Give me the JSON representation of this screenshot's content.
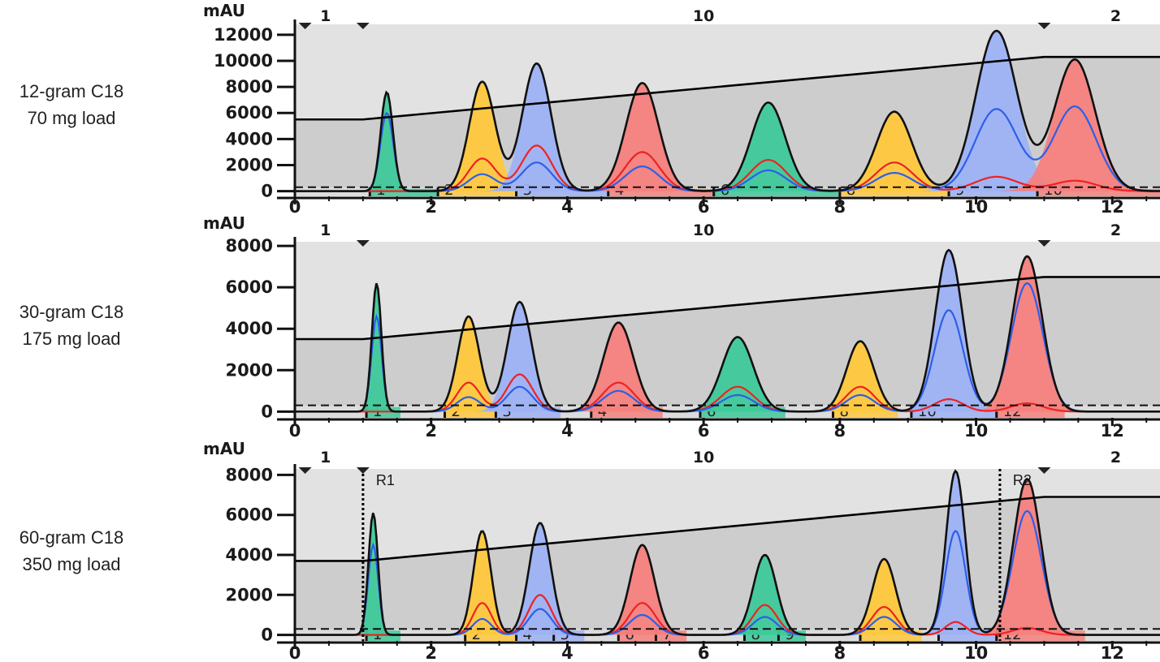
{
  "chart_data": [
    {
      "type": "line",
      "title": "12-gram C18",
      "subtitle": "70 mg load",
      "ylabel": "mAU",
      "xlim": [
        0,
        12.7
      ],
      "ylim": [
        -400,
        12800
      ],
      "xticks": [
        0,
        2,
        4,
        6,
        8,
        10,
        12
      ],
      "yticks": [
        0,
        2000,
        4000,
        6000,
        8000,
        10000,
        12000
      ],
      "rack_labels": [
        {
          "x": 0.45,
          "text": "1"
        },
        {
          "x": 6.0,
          "text": "10"
        },
        {
          "x": 12.05,
          "text": "2"
        }
      ],
      "rack_markers": [
        0.15,
        1.0,
        11.0
      ],
      "threshold": 300,
      "gradient": [
        [
          0,
          5500
        ],
        [
          1.0,
          5500
        ],
        [
          11.0,
          10300
        ],
        [
          12.7,
          10300
        ]
      ],
      "peaks": [
        {
          "x": 1.35,
          "height": 7600,
          "sigma": 0.09,
          "color": "#3ec99a",
          "blue": 6000,
          "red": 0
        },
        {
          "x": 2.75,
          "height": 8400,
          "sigma": 0.19,
          "color": "#ffc83d",
          "blue": 1300,
          "red": 2500
        },
        {
          "x": 3.55,
          "height": 9800,
          "sigma": 0.21,
          "color": "#9db2f5",
          "blue": 2200,
          "red": 3500
        },
        {
          "x": 5.1,
          "height": 8300,
          "sigma": 0.24,
          "color": "#f5817d",
          "blue": 1900,
          "red": 3000
        },
        {
          "x": 6.95,
          "height": 6800,
          "sigma": 0.25,
          "color": "#3ec99a",
          "blue": 1600,
          "red": 2400
        },
        {
          "x": 8.8,
          "height": 6100,
          "sigma": 0.26,
          "color": "#ffc83d",
          "blue": 1400,
          "red": 2200
        },
        {
          "x": 10.3,
          "height": 12300,
          "sigma": 0.3,
          "color": "#9db2f5",
          "blue": 6300,
          "red": 1100
        },
        {
          "x": 11.45,
          "height": 10100,
          "sigma": 0.3,
          "color": "#f5817d",
          "blue": 6500,
          "red": 800
        }
      ],
      "fractions": [
        {
          "start": 1.1,
          "end": 2.1,
          "label": "1",
          "color": "#3ec99a"
        },
        {
          "start": 2.1,
          "end": 3.25,
          "label": "2",
          "color": "#ffc83d"
        },
        {
          "start": 3.25,
          "end": 4.6,
          "label": "3",
          "color": "#9db2f5"
        },
        {
          "start": 4.6,
          "end": 6.15,
          "label": "4",
          "color": "#f5817d"
        },
        {
          "start": 6.15,
          "end": 8.0,
          "label": "6",
          "color": "#3ec99a"
        },
        {
          "start": 8.0,
          "end": 9.6,
          "label": "8",
          "color": "#ffc83d"
        },
        {
          "start": 9.6,
          "end": 10.9,
          "label": "9",
          "color": "#9db2f5"
        },
        {
          "start": 10.9,
          "end": 12.7,
          "label": "10",
          "color": "#f5817d"
        }
      ],
      "markers": []
    },
    {
      "type": "line",
      "title": "30-gram C18",
      "subtitle": "175 mg load",
      "ylabel": "mAU",
      "xlim": [
        0,
        12.7
      ],
      "ylim": [
        -300,
        8200
      ],
      "xticks": [
        0,
        2,
        4,
        6,
        8,
        10,
        12
      ],
      "yticks": [
        0,
        2000,
        4000,
        6000,
        8000
      ],
      "rack_labels": [
        {
          "x": 0.45,
          "text": "1"
        },
        {
          "x": 6.0,
          "text": "10"
        },
        {
          "x": 12.05,
          "text": "2"
        }
      ],
      "rack_markers": [
        1.0,
        11.0
      ],
      "threshold": 300,
      "gradient": [
        [
          0,
          3500
        ],
        [
          1.0,
          3500
        ],
        [
          11.0,
          6500
        ],
        [
          12.7,
          6500
        ]
      ],
      "peaks": [
        {
          "x": 1.2,
          "height": 6200,
          "sigma": 0.07,
          "color": "#3ec99a",
          "blue": 4600,
          "red": 0
        },
        {
          "x": 2.55,
          "height": 4600,
          "sigma": 0.16,
          "color": "#ffc83d",
          "blue": 700,
          "red": 1400
        },
        {
          "x": 3.3,
          "height": 5300,
          "sigma": 0.18,
          "color": "#9db2f5",
          "blue": 1200,
          "red": 1800
        },
        {
          "x": 4.75,
          "height": 4300,
          "sigma": 0.22,
          "color": "#f5817d",
          "blue": 1000,
          "red": 1400
        },
        {
          "x": 6.5,
          "height": 3600,
          "sigma": 0.23,
          "color": "#3ec99a",
          "blue": 800,
          "red": 1200
        },
        {
          "x": 8.3,
          "height": 3400,
          "sigma": 0.2,
          "color": "#ffc83d",
          "blue": 800,
          "red": 1200
        },
        {
          "x": 9.6,
          "height": 7800,
          "sigma": 0.2,
          "color": "#9db2f5",
          "blue": 4900,
          "red": 600
        },
        {
          "x": 10.75,
          "height": 7500,
          "sigma": 0.22,
          "color": "#f5817d",
          "blue": 6200,
          "red": 400
        }
      ],
      "fractions": [
        {
          "start": 1.05,
          "end": 1.55,
          "label": "1",
          "color": "#3ec99a"
        },
        {
          "start": 2.2,
          "end": 2.95,
          "label": "2",
          "color": "#ffc83d"
        },
        {
          "start": 2.95,
          "end": 3.9,
          "label": "3",
          "color": "#9db2f5"
        },
        {
          "start": 4.35,
          "end": 5.4,
          "label": "4",
          "color": "#f5817d"
        },
        {
          "start": 5.95,
          "end": 7.2,
          "label": "6",
          "color": "#3ec99a"
        },
        {
          "start": 7.9,
          "end": 8.85,
          "label": "8",
          "color": "#ffc83d"
        },
        {
          "start": 9.05,
          "end": 10.3,
          "label": "10",
          "color": "#9db2f5"
        },
        {
          "start": 10.3,
          "end": 11.3,
          "label": "12",
          "color": "#f5817d"
        }
      ],
      "markers": []
    },
    {
      "type": "line",
      "title": "60-gram C18",
      "subtitle": "350 mg load",
      "ylabel": "mAU",
      "xlim": [
        0,
        12.7
      ],
      "ylim": [
        -300,
        8300
      ],
      "xticks": [
        0,
        2,
        4,
        6,
        8,
        10,
        12
      ],
      "yticks": [
        0,
        2000,
        4000,
        6000,
        8000
      ],
      "rack_labels": [
        {
          "x": 0.45,
          "text": "1"
        },
        {
          "x": 6.0,
          "text": "10"
        },
        {
          "x": 12.05,
          "text": "2"
        }
      ],
      "rack_markers": [
        0.15,
        1.0,
        11.0
      ],
      "threshold": 300,
      "gradient": [
        [
          0,
          3700
        ],
        [
          1.0,
          3700
        ],
        [
          11.0,
          6900
        ],
        [
          12.7,
          6900
        ]
      ],
      "peaks": [
        {
          "x": 1.15,
          "height": 6100,
          "sigma": 0.07,
          "color": "#3ec99a",
          "blue": 4500,
          "red": 0
        },
        {
          "x": 2.75,
          "height": 5200,
          "sigma": 0.13,
          "color": "#ffc83d",
          "blue": 800,
          "red": 1600
        },
        {
          "x": 3.6,
          "height": 5600,
          "sigma": 0.16,
          "color": "#9db2f5",
          "blue": 1300,
          "red": 2000
        },
        {
          "x": 5.1,
          "height": 4500,
          "sigma": 0.18,
          "color": "#f5817d",
          "blue": 1000,
          "red": 1600
        },
        {
          "x": 6.9,
          "height": 4000,
          "sigma": 0.17,
          "color": "#3ec99a",
          "blue": 900,
          "red": 1500
        },
        {
          "x": 8.65,
          "height": 3800,
          "sigma": 0.17,
          "color": "#ffc83d",
          "blue": 900,
          "red": 1400
        },
        {
          "x": 9.7,
          "height": 8200,
          "sigma": 0.14,
          "color": "#9db2f5",
          "blue": 5200,
          "red": 650
        },
        {
          "x": 10.75,
          "height": 7800,
          "sigma": 0.2,
          "color": "#f5817d",
          "blue": 6200,
          "red": 350
        }
      ],
      "fractions": [
        {
          "start": 1.05,
          "end": 1.55,
          "label": "1",
          "color": "#3ec99a"
        },
        {
          "start": 2.5,
          "end": 3.25,
          "label": "2",
          "color": "#ffc83d"
        },
        {
          "start": 3.25,
          "end": 3.8,
          "label": "4",
          "color": "#9db2f5"
        },
        {
          "start": 3.8,
          "end": 4.25,
          "label": "5",
          "color": "#9db2f5"
        },
        {
          "start": 4.75,
          "end": 5.3,
          "label": "6",
          "color": "#f5817d"
        },
        {
          "start": 5.3,
          "end": 5.75,
          "label": "7",
          "color": "#f5817d"
        },
        {
          "start": 6.6,
          "end": 7.1,
          "label": "8",
          "color": "#3ec99a"
        },
        {
          "start": 7.1,
          "end": 7.5,
          "label": "9",
          "color": "#3ec99a"
        },
        {
          "start": 8.3,
          "end": 9.2,
          "label": "",
          "color": "#ffc83d"
        },
        {
          "start": 9.45,
          "end": 10.3,
          "label": "",
          "color": "#9db2f5"
        },
        {
          "start": 10.3,
          "end": 11.6,
          "label": "12",
          "color": "#f5817d"
        }
      ],
      "markers": [
        {
          "x": 1.0,
          "label": "R1"
        },
        {
          "x": 10.35,
          "label": "R2"
        }
      ]
    }
  ],
  "colors": {
    "upper_background": "#e2e2e2",
    "lower_background": "#cdcdcd",
    "baseline_band": "#dcdcdc",
    "outline": "#111111",
    "blue_trace": "#2d5fe8",
    "red_trace": "#ee2222",
    "gradient_line": "#000000"
  }
}
